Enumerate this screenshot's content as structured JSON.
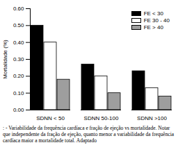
{
  "chart_data": {
    "type": "bar",
    "y_label": "Mortalidade (%)",
    "caption": ": - Variabilidade da frequência cardíaca e fração de ejeção vs mortalidade. Notar que independente da fração de ejeção, quanto menor a variabilidade da frequência cardíaca maior a mortalidade total. Adaptado",
    "categories": [
      "SDNN < 50",
      "SDNN 50-100",
      "SDNN >100"
    ],
    "series": [
      {
        "name": "FE < 30",
        "color": "#000000",
        "values": [
          0.5,
          0.27,
          0.23
        ]
      },
      {
        "name": "FE 30 - 40",
        "color": "#ffffff",
        "values": [
          0.4,
          0.2,
          0.13
        ]
      },
      {
        "name": "FE > 40",
        "color": "#9e9e9e",
        "values": [
          0.18,
          0.1,
          0.08
        ]
      }
    ],
    "ylim": [
      0,
      0.6
    ],
    "yticks": [
      0,
      0.1,
      0.2,
      0.3,
      0.4,
      0.5,
      0.6
    ],
    "legend": "top-right",
    "grid": false
  }
}
